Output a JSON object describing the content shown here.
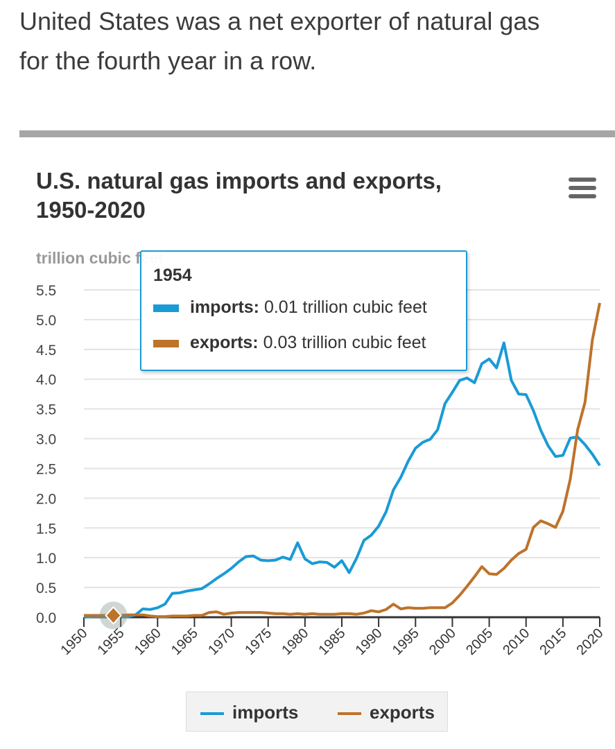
{
  "intro": {
    "line1": "United States was a net exporter of natural gas",
    "line2": "for the fourth year in a row."
  },
  "menu_icon": "hamburger-menu-icon",
  "tooltip": {
    "year": "1954",
    "imports_label": "imports:",
    "imports_value": "0.01 trillion cubic feet",
    "exports_label": "exports:",
    "exports_value": "0.03 trillion cubic feet"
  },
  "colors": {
    "imports": "#1a9ad6",
    "exports": "#bd732a"
  },
  "chart_data": {
    "type": "line",
    "title": "U.S. natural gas imports and exports, 1950-2020",
    "title_line1": "U.S. natural gas imports and exports,",
    "title_line2": "1950-2020",
    "ylabel": "trillion cubic feet",
    "xlim": [
      1950,
      2020
    ],
    "ylim": [
      0,
      5.5
    ],
    "yticks": [
      "0.0",
      "0.5",
      "1.0",
      "1.5",
      "2.0",
      "2.5",
      "3.0",
      "3.5",
      "4.0",
      "4.5",
      "5.0",
      "5.5"
    ],
    "xticks": [
      "1950",
      "1955",
      "1960",
      "1965",
      "1970",
      "1975",
      "1980",
      "1985",
      "1990",
      "1995",
      "2000",
      "2005",
      "2010",
      "2015",
      "2020"
    ],
    "grid": true,
    "legend": "bottom",
    "x_start": 1950,
    "series": [
      {
        "name": "imports",
        "values": [
          0.0,
          0.01,
          0.01,
          0.01,
          0.01,
          0.01,
          0.01,
          0.04,
          0.14,
          0.13,
          0.16,
          0.22,
          0.4,
          0.41,
          0.44,
          0.46,
          0.48,
          0.56,
          0.65,
          0.73,
          0.82,
          0.93,
          1.02,
          1.03,
          0.96,
          0.95,
          0.96,
          1.01,
          0.97,
          1.25,
          0.98,
          0.9,
          0.93,
          0.92,
          0.84,
          0.95,
          0.75,
          0.99,
          1.29,
          1.38,
          1.53,
          1.77,
          2.14,
          2.35,
          2.62,
          2.84,
          2.94,
          2.99,
          3.15,
          3.59,
          3.78,
          3.98,
          4.02,
          3.94,
          4.26,
          4.34,
          4.19,
          4.61,
          3.98,
          3.75,
          3.74,
          3.47,
          3.14,
          2.88,
          2.7,
          2.72,
          3.01,
          3.03,
          2.9,
          2.74,
          2.55
        ]
      },
      {
        "name": "exports",
        "values": [
          0.03,
          0.03,
          0.03,
          0.03,
          0.03,
          0.03,
          0.04,
          0.04,
          0.04,
          0.02,
          0.01,
          0.01,
          0.02,
          0.02,
          0.02,
          0.03,
          0.03,
          0.08,
          0.09,
          0.05,
          0.07,
          0.08,
          0.08,
          0.08,
          0.08,
          0.07,
          0.06,
          0.06,
          0.05,
          0.06,
          0.05,
          0.06,
          0.05,
          0.05,
          0.05,
          0.06,
          0.06,
          0.05,
          0.07,
          0.11,
          0.09,
          0.13,
          0.22,
          0.14,
          0.16,
          0.15,
          0.15,
          0.16,
          0.16,
          0.16,
          0.24,
          0.37,
          0.52,
          0.68,
          0.85,
          0.73,
          0.72,
          0.82,
          0.96,
          1.07,
          1.14,
          1.51,
          1.62,
          1.57,
          1.51,
          1.78,
          2.32,
          3.15,
          3.61,
          4.66,
          5.28
        ]
      }
    ],
    "highlight": {
      "x": 1954,
      "imports": 0.01,
      "exports": 0.03
    }
  }
}
